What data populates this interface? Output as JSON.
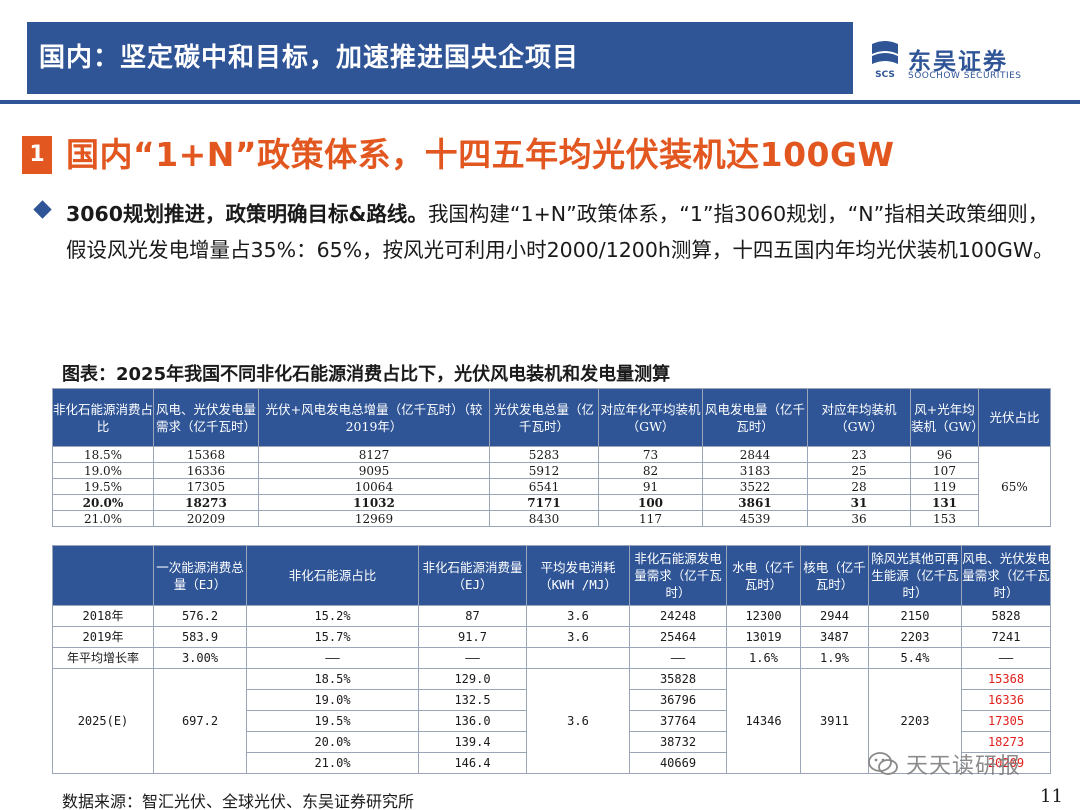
{
  "header": {
    "title": "国内：坚定碳中和目标，加速推进国央企项目"
  },
  "logo": {
    "mark": "SCS",
    "cn": "东吴证券",
    "en": "SOOCHOW SECURITIES"
  },
  "section": {
    "number": "1",
    "title": "国内“1+N”政策体系，十四五年均光伏装机达100GW"
  },
  "bullet": {
    "bold": "3060规划推进，政策明确目标&路线。",
    "text": "我国构建“1+N”政策体系，“1”指3060规划，“N”指相关政策细则，假设风光发电增量占35%：65%，按风光可利用小时2000/1200h测算，十四五国内年均光伏装机100GW。"
  },
  "table_caption": "图表：2025年我国不同非化石能源消费占比下，光伏风电装机和发电量测算",
  "table1": {
    "headers": [
      "非化石能源消费占比",
      "风电、光伏发电量需求（亿千瓦时）",
      "光伏+风电发电总增量（亿千瓦时）（较2019年）",
      "光伏发电总量（亿千瓦时）",
      "对应年化平均装机（GW）",
      "风电发电量（亿千瓦时）",
      "对应年均装机（GW）",
      "风+光年均装机（GW）",
      "光伏占比"
    ],
    "rows": [
      [
        "18.5%",
        "15368",
        "8127",
        "5283",
        "73",
        "2844",
        "23",
        "96"
      ],
      [
        "19.0%",
        "16336",
        "9095",
        "5912",
        "82",
        "3183",
        "25",
        "107"
      ],
      [
        "19.5%",
        "17305",
        "10064",
        "6541",
        "91",
        "3522",
        "28",
        "119"
      ],
      [
        "20.0%",
        "18273",
        "11032",
        "7171",
        "100",
        "3861",
        "31",
        "131"
      ],
      [
        "21.0%",
        "20209",
        "12969",
        "8430",
        "117",
        "4539",
        "36",
        "153"
      ]
    ],
    "pv_share": "65%"
  },
  "table2": {
    "headers": [
      "",
      "一次能源消费总量（EJ）",
      "非化石能源占比",
      "非化石能源消费量（EJ）",
      "平均发电消耗（KWH /MJ）",
      "非化石能源发电量需求（亿千瓦时）",
      "水电（亿千瓦时）",
      "核电（亿千瓦时）",
      "除风光其他可再生能源（亿千瓦时）",
      "风电、光伏发电量需求（亿千瓦时）"
    ],
    "rows": [
      [
        "2018年",
        "576.2",
        "15.2%",
        "87",
        "3.6",
        "24248",
        "12300",
        "2944",
        "2150",
        "5828"
      ],
      [
        "2019年",
        "583.9",
        "15.7%",
        "91.7",
        "3.6",
        "25464",
        "13019",
        "3487",
        "2203",
        "7241"
      ],
      [
        "年平均增长率",
        "3.00%",
        "——",
        "——",
        "",
        "——",
        "1.6%",
        "1.9%",
        "5.4%",
        "——"
      ]
    ],
    "forecast": {
      "year": "2025(E)",
      "total": "697.2",
      "consumption_rate": "3.6",
      "hydro": "14346",
      "nuclear": "3911",
      "other": "2203",
      "rows": [
        [
          "18.5%",
          "129.0",
          "35828",
          "15368"
        ],
        [
          "19.0%",
          "132.5",
          "36796",
          "16336"
        ],
        [
          "19.5%",
          "136.0",
          "37764",
          "17305"
        ],
        [
          "20.0%",
          "139.4",
          "38732",
          "18273"
        ],
        [
          "21.0%",
          "146.4",
          "40669",
          "20209"
        ]
      ]
    }
  },
  "footer": {
    "source": "数据来源：智汇光伏、全球光伏、东吴证券研究所",
    "page": "11"
  },
  "watermark": {
    "text": "天天读研报"
  },
  "colors": {
    "brand_blue": "#2f5597",
    "accent_orange": "#e2571f",
    "red": "#e0201b"
  }
}
